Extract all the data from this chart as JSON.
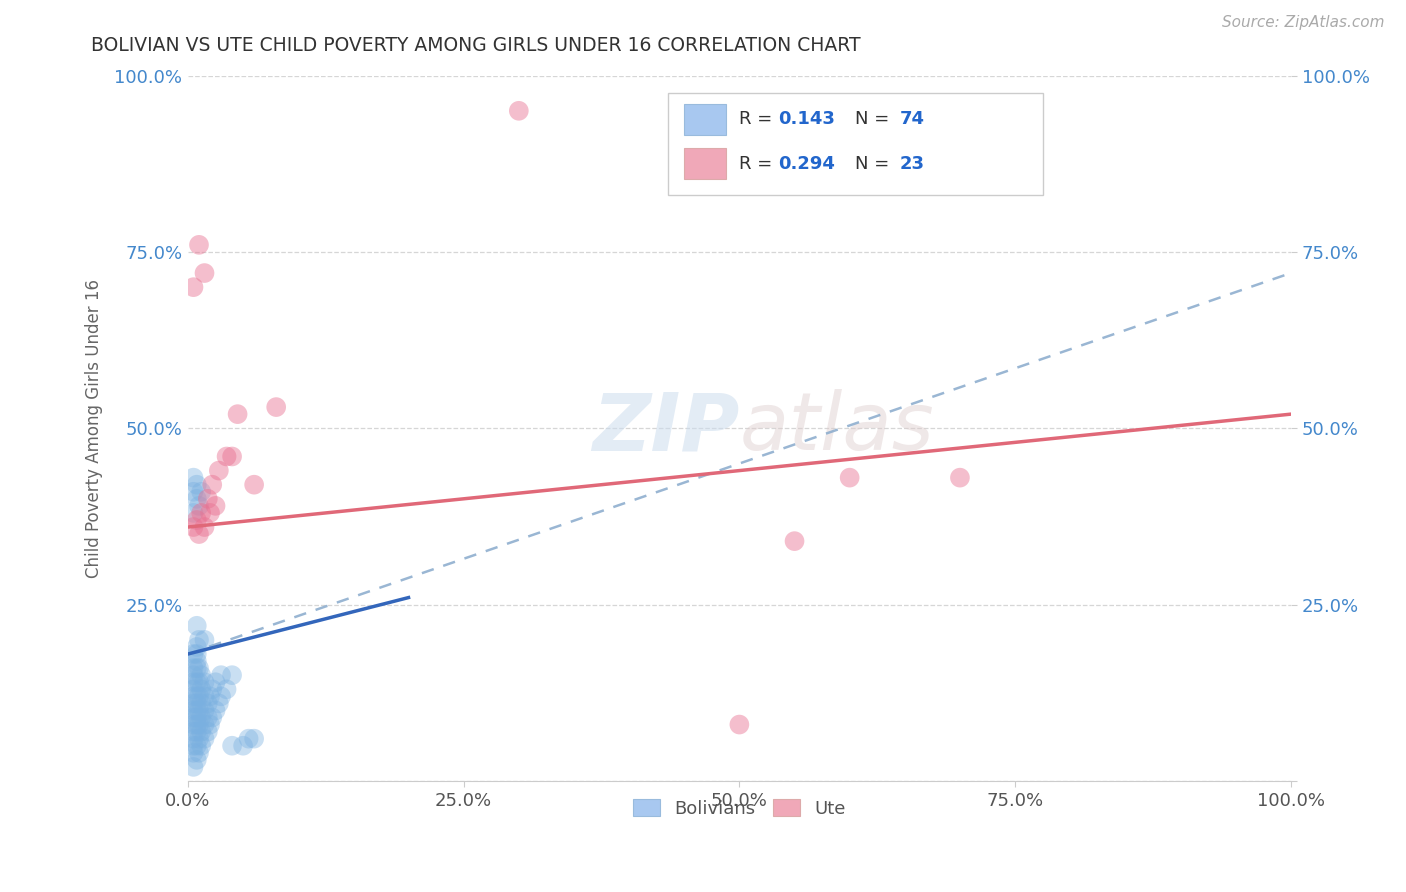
{
  "title": "BOLIVIAN VS UTE CHILD POVERTY AMONG GIRLS UNDER 16 CORRELATION CHART",
  "source": "Source: ZipAtlas.com",
  "ylabel": "Child Poverty Among Girls Under 16",
  "xlim": [
    0.0,
    1.0
  ],
  "ylim": [
    0.0,
    1.0
  ],
  "xtick_positions": [
    0.0,
    0.25,
    0.5,
    0.75,
    1.0
  ],
  "xtick_labels": [
    "0.0%",
    "25.0%",
    "50.0%",
    "75.0%",
    "100.0%"
  ],
  "ytick_positions": [
    0.0,
    0.25,
    0.5,
    0.75,
    1.0
  ],
  "ytick_labels": [
    "",
    "25.0%",
    "50.0%",
    "75.0%",
    "100.0%"
  ],
  "bolivian_color": "#7ab0e0",
  "ute_color": "#e87090",
  "bolivian_legend_color": "#a8c8f0",
  "ute_legend_color": "#f0a8b8",
  "bolivian_R": "0.143",
  "bolivian_N": "74",
  "ute_R": "0.294",
  "ute_N": "23",
  "watermark": "ZIPatlas",
  "background_color": "#ffffff",
  "grid_color": "#cccccc",
  "bolivian_scatter": [
    [
      0.005,
      0.02
    ],
    [
      0.005,
      0.04
    ],
    [
      0.005,
      0.05
    ],
    [
      0.005,
      0.06
    ],
    [
      0.005,
      0.07
    ],
    [
      0.005,
      0.08
    ],
    [
      0.005,
      0.09
    ],
    [
      0.005,
      0.1
    ],
    [
      0.005,
      0.11
    ],
    [
      0.005,
      0.12
    ],
    [
      0.005,
      0.13
    ],
    [
      0.005,
      0.14
    ],
    [
      0.005,
      0.15
    ],
    [
      0.005,
      0.16
    ],
    [
      0.005,
      0.18
    ],
    [
      0.008,
      0.03
    ],
    [
      0.008,
      0.05
    ],
    [
      0.008,
      0.07
    ],
    [
      0.008,
      0.08
    ],
    [
      0.008,
      0.09
    ],
    [
      0.008,
      0.1
    ],
    [
      0.008,
      0.11
    ],
    [
      0.008,
      0.12
    ],
    [
      0.008,
      0.14
    ],
    [
      0.008,
      0.16
    ],
    [
      0.008,
      0.17
    ],
    [
      0.008,
      0.18
    ],
    [
      0.008,
      0.19
    ],
    [
      0.01,
      0.04
    ],
    [
      0.01,
      0.06
    ],
    [
      0.01,
      0.08
    ],
    [
      0.01,
      0.1
    ],
    [
      0.01,
      0.12
    ],
    [
      0.01,
      0.14
    ],
    [
      0.01,
      0.16
    ],
    [
      0.012,
      0.05
    ],
    [
      0.012,
      0.07
    ],
    [
      0.012,
      0.09
    ],
    [
      0.012,
      0.11
    ],
    [
      0.012,
      0.13
    ],
    [
      0.012,
      0.15
    ],
    [
      0.015,
      0.06
    ],
    [
      0.015,
      0.08
    ],
    [
      0.015,
      0.1
    ],
    [
      0.015,
      0.12
    ],
    [
      0.015,
      0.14
    ],
    [
      0.018,
      0.07
    ],
    [
      0.018,
      0.09
    ],
    [
      0.018,
      0.11
    ],
    [
      0.02,
      0.08
    ],
    [
      0.02,
      0.12
    ],
    [
      0.022,
      0.09
    ],
    [
      0.022,
      0.13
    ],
    [
      0.025,
      0.1
    ],
    [
      0.025,
      0.14
    ],
    [
      0.028,
      0.11
    ],
    [
      0.03,
      0.12
    ],
    [
      0.03,
      0.15
    ],
    [
      0.035,
      0.13
    ],
    [
      0.04,
      0.15
    ],
    [
      0.005,
      0.38
    ],
    [
      0.005,
      0.41
    ],
    [
      0.005,
      0.43
    ],
    [
      0.008,
      0.4
    ],
    [
      0.008,
      0.42
    ],
    [
      0.01,
      0.39
    ],
    [
      0.012,
      0.41
    ],
    [
      0.008,
      0.22
    ],
    [
      0.01,
      0.2
    ],
    [
      0.015,
      0.2
    ],
    [
      0.04,
      0.05
    ],
    [
      0.05,
      0.05
    ],
    [
      0.055,
      0.06
    ],
    [
      0.06,
      0.06
    ]
  ],
  "ute_scatter": [
    [
      0.005,
      0.36
    ],
    [
      0.008,
      0.37
    ],
    [
      0.01,
      0.35
    ],
    [
      0.012,
      0.38
    ],
    [
      0.015,
      0.36
    ],
    [
      0.018,
      0.4
    ],
    [
      0.02,
      0.38
    ],
    [
      0.022,
      0.42
    ],
    [
      0.025,
      0.39
    ],
    [
      0.028,
      0.44
    ],
    [
      0.035,
      0.46
    ],
    [
      0.04,
      0.46
    ],
    [
      0.045,
      0.52
    ],
    [
      0.06,
      0.42
    ],
    [
      0.08,
      0.53
    ],
    [
      0.3,
      0.95
    ],
    [
      0.5,
      0.08
    ],
    [
      0.55,
      0.34
    ],
    [
      0.6,
      0.43
    ],
    [
      0.005,
      0.7
    ],
    [
      0.01,
      0.76
    ],
    [
      0.015,
      0.72
    ],
    [
      0.7,
      0.43
    ]
  ],
  "blue_line_x": [
    0.0,
    0.2
  ],
  "blue_line_y": [
    0.18,
    0.26
  ],
  "pink_line_x": [
    0.0,
    1.0
  ],
  "pink_line_y": [
    0.36,
    0.52
  ],
  "dashed_line_x": [
    0.0,
    1.0
  ],
  "dashed_line_y": [
    0.18,
    0.72
  ]
}
